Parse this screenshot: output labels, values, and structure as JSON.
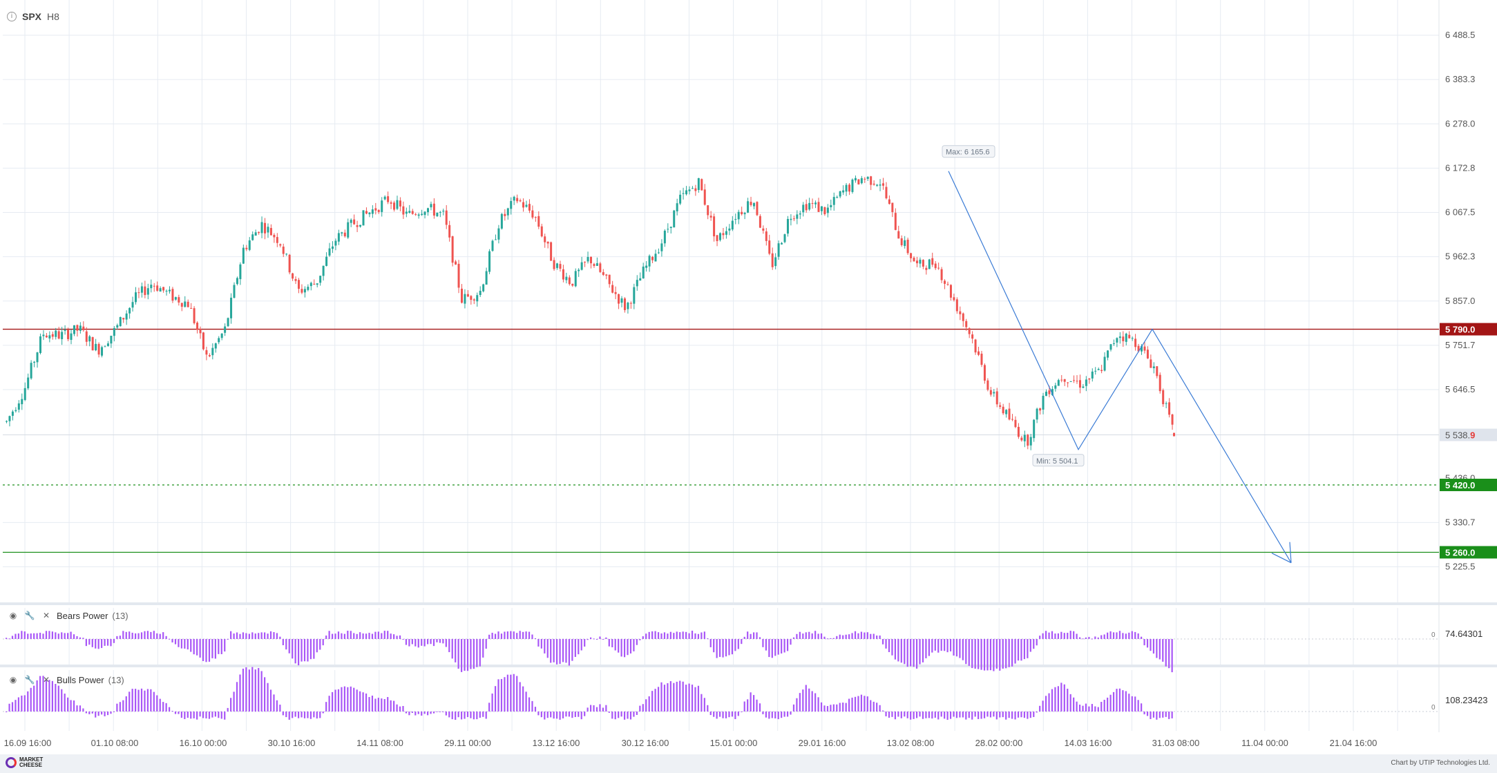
{
  "header": {
    "symbol": "SPX",
    "timeframe": "H8"
  },
  "chart_data": {
    "type": "candlestick",
    "y_ticks": [
      "6 488.5",
      "6 383.3",
      "6 278.0",
      "6 172.8",
      "6 067.5",
      "5 962.3",
      "5 857.0",
      "5 751.7",
      "5 646.5",
      "5 330.7",
      "5 225.5"
    ],
    "y_tick_values": [
      6488.5,
      6383.3,
      6278.0,
      6172.8,
      6067.5,
      5962.3,
      5857.0,
      5751.7,
      5646.5,
      5330.7,
      5225.5
    ],
    "x_ticks": [
      "16.09 16:00",
      "01.10 08:00",
      "16.10 00:00",
      "30.10 16:00",
      "14.11 08:00",
      "29.11 00:00",
      "13.12 16:00",
      "30.12 16:00",
      "15.01 00:00",
      "29.01 16:00",
      "13.02 08:00",
      "28.02 00:00",
      "14.03 16:00",
      "31.03 08:00",
      "11.04 00:00",
      "21.04 16:00"
    ],
    "ylim": [
      5140,
      6530
    ],
    "path_points": [
      {
        "x": "16.09 16:00",
        "y": 5570
      },
      {
        "x": "18.09",
        "y": 5650
      },
      {
        "x": "22.09",
        "y": 5780
      },
      {
        "x": "28.09",
        "y": 5775
      },
      {
        "x": "03.10",
        "y": 5790
      },
      {
        "x": "08.10",
        "y": 5740
      },
      {
        "x": "12.10",
        "y": 5790
      },
      {
        "x": "17.10",
        "y": 5860
      },
      {
        "x": "20.10",
        "y": 5900
      },
      {
        "x": "24.10",
        "y": 5870
      },
      {
        "x": "28.10",
        "y": 5850
      },
      {
        "x": "01.11",
        "y": 5720
      },
      {
        "x": "05.11",
        "y": 5790
      },
      {
        "x": "08.11",
        "y": 5980
      },
      {
        "x": "11.11",
        "y": 6040
      },
      {
        "x": "14.11",
        "y": 6000
      },
      {
        "x": "17.11",
        "y": 5880
      },
      {
        "x": "20.11",
        "y": 5900
      },
      {
        "x": "24.11",
        "y": 6000
      },
      {
        "x": "28.11",
        "y": 6040
      },
      {
        "x": "02.12",
        "y": 6070
      },
      {
        "x": "06.12",
        "y": 6100
      },
      {
        "x": "10.12",
        "y": 6060
      },
      {
        "x": "14.12",
        "y": 6080
      },
      {
        "x": "18.12",
        "y": 6060
      },
      {
        "x": "20.12",
        "y": 5860
      },
      {
        "x": "22.12",
        "y": 5880
      },
      {
        "x": "24.12",
        "y": 6040
      },
      {
        "x": "26.12",
        "y": 6100
      },
      {
        "x": "28.12",
        "y": 6060
      },
      {
        "x": "31.12",
        "y": 5950
      },
      {
        "x": "04.01",
        "y": 5900
      },
      {
        "x": "08.01",
        "y": 5960
      },
      {
        "x": "10.01",
        "y": 5900
      },
      {
        "x": "13.01",
        "y": 5840
      },
      {
        "x": "16.01",
        "y": 5930
      },
      {
        "x": "20.01",
        "y": 6000
      },
      {
        "x": "24.01",
        "y": 6100
      },
      {
        "x": "27.01",
        "y": 6140
      },
      {
        "x": "29.01",
        "y": 6000
      },
      {
        "x": "01.02",
        "y": 6060
      },
      {
        "x": "04.02",
        "y": 6100
      },
      {
        "x": "06.02",
        "y": 5940
      },
      {
        "x": "09.02",
        "y": 6060
      },
      {
        "x": "12.02",
        "y": 6090
      },
      {
        "x": "14.02",
        "y": 6070
      },
      {
        "x": "17.02",
        "y": 6120
      },
      {
        "x": "20.02",
        "y": 6150
      },
      {
        "x": "22.02",
        "y": 6140
      },
      {
        "x": "24.02",
        "y": 6010
      },
      {
        "x": "27.02",
        "y": 5940
      },
      {
        "x": "01.03",
        "y": 5950
      },
      {
        "x": "04.03",
        "y": 5860
      },
      {
        "x": "07.03",
        "y": 5770
      },
      {
        "x": "10.03",
        "y": 5640
      },
      {
        "x": "12.03",
        "y": 5580
      },
      {
        "x": "14.03",
        "y": 5520
      },
      {
        "x": "17.03",
        "y": 5640
      },
      {
        "x": "20.03",
        "y": 5680
      },
      {
        "x": "22.03",
        "y": 5660
      },
      {
        "x": "24.03",
        "y": 5690
      },
      {
        "x": "27.03",
        "y": 5780
      },
      {
        "x": "29.03",
        "y": 5760
      },
      {
        "x": "31.03",
        "y": 5700
      },
      {
        "x": "02.04",
        "y": 5550
      }
    ],
    "levels": [
      {
        "label": "5 790.0",
        "value": 5790,
        "color": "#a31515",
        "style": "solid"
      },
      {
        "label": "5 420.0",
        "value": 5420,
        "color": "#1a8f1a",
        "style": "dashed"
      },
      {
        "label": "5 260.0",
        "value": 5260,
        "color": "#1a8f1a",
        "style": "solid"
      }
    ],
    "current_price": {
      "main": "5 538.",
      "last_digit": "9",
      "value": 5538.9
    },
    "hidden_tick": {
      "label": "5 436.0",
      "value": 5436
    },
    "max_label": "Max: 6 165.6",
    "max_value": 6165.6,
    "min_label": "Min: 5 504.1",
    "min_value": 5504.1,
    "projection": [
      {
        "x": "18.02",
        "y": 6165.6
      },
      {
        "x": "13.03",
        "y": 5504.1
      },
      {
        "x": "27.03",
        "y": 5790
      },
      {
        "x": "08.04",
        "y": 5235
      }
    ],
    "colors": {
      "up": "#26a69a",
      "down": "#ef5350",
      "grid": "#e6ebf2",
      "bars": "#a855f7",
      "projection": "#3a7bd5"
    }
  },
  "indicators": [
    {
      "name": "Bears Power",
      "period": "(13)",
      "value_label": "74.64301",
      "zero_label": "0"
    },
    {
      "name": "Bulls Power",
      "period": "(13)",
      "value_label": "108.23423",
      "zero_label": "0"
    }
  ],
  "footer": {
    "logo_line1": "MARKET",
    "logo_line2": "CHEESE",
    "credit": "Chart by UTIP Technologies Ltd."
  }
}
